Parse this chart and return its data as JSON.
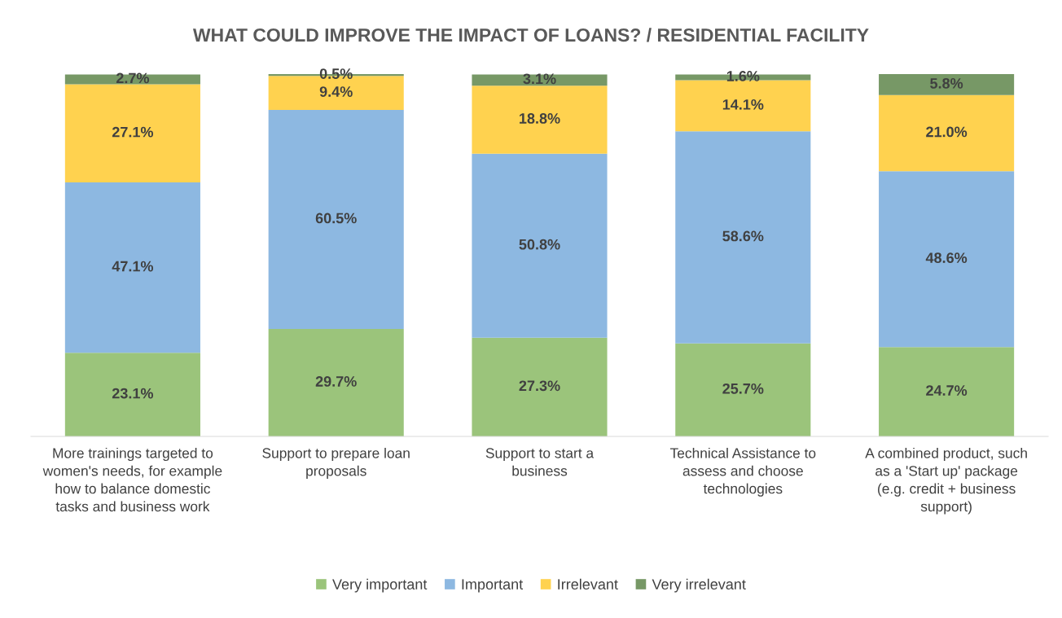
{
  "chart_data": {
    "type": "bar",
    "title": "WHAT COULD IMPROVE THE IMPACT OF LOANS? / RESIDENTIAL FACILITY",
    "stacked": true,
    "legend": "bottom",
    "grid": false,
    "categories": [
      "More trainings targeted to women's needs, for example how to balance domestic tasks and business work",
      "Support to prepare loan proposals",
      "Support to start a business",
      "Technical Assistance to assess and choose technologies",
      "A combined product, such as a 'Start up' package (e.g. credit + business support)"
    ],
    "series": [
      {
        "name": "Very important",
        "color": "#9bc47b",
        "values": [
          23.1,
          29.7,
          27.3,
          25.7,
          24.7
        ],
        "value_labels": [
          "23.1%",
          "29.7%",
          "27.3%",
          "25.7%",
          "24.7%"
        ]
      },
      {
        "name": "Important",
        "color": "#8db8e1",
        "values": [
          47.1,
          60.5,
          50.8,
          58.6,
          48.6
        ],
        "value_labels": [
          "47.1%",
          "60.5%",
          "50.8%",
          "58.6%",
          "48.6%"
        ]
      },
      {
        "name": "Irrelevant",
        "color": "#ffd24f",
        "values": [
          27.1,
          9.4,
          18.8,
          14.1,
          21.0
        ],
        "value_labels": [
          "27.1%",
          "9.4%",
          "18.8%",
          "14.1%",
          "21.0%"
        ]
      },
      {
        "name": "Very irrelevant",
        "color": "#779866",
        "values": [
          2.7,
          0.5,
          3.1,
          1.6,
          5.8
        ],
        "value_labels": [
          "2.7%",
          "0.5%",
          "3.1%",
          "1.6%",
          "5.8%"
        ]
      }
    ]
  }
}
